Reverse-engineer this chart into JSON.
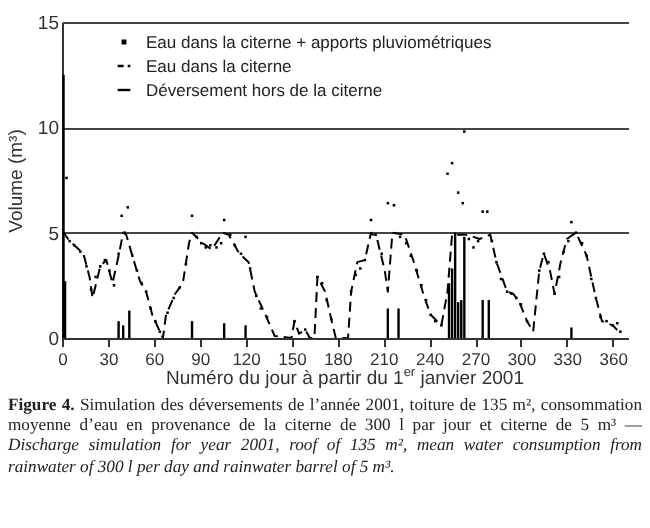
{
  "chart_data": {
    "type": "scatter",
    "xlabel": "Numéro du jour à partir du 1$^{er}$ janvier 2001",
    "ylabel": "Volume (m³)",
    "xlim": [
      0,
      370
    ],
    "xticks": [
      0,
      30,
      60,
      90,
      120,
      150,
      180,
      210,
      240,
      270,
      300,
      330,
      360
    ],
    "ylim": [
      0,
      15
    ],
    "yticks": [
      0,
      5,
      10,
      15
    ],
    "grid": "y",
    "legend": "top left",
    "series": [
      {
        "name": "Eau dans la citerne + apports pluviométriques",
        "marker": "square",
        "color": "#000000",
        "x": [
          3,
          5,
          8,
          12,
          16,
          19,
          22,
          25,
          28,
          31,
          34,
          37,
          39,
          41,
          43,
          46,
          49,
          52,
          55,
          58,
          61,
          64,
          69,
          73,
          77,
          81,
          85,
          88,
          91,
          94,
          97,
          101,
          104,
          106,
          110,
          113,
          117,
          120,
          123,
          127,
          130,
          134,
          152,
          159,
          167,
          170,
          173,
          176,
          189,
          192,
          195,
          198,
          202,
          205,
          209,
          213,
          217,
          221,
          225,
          228,
          232,
          235,
          238,
          241,
          244,
          248,
          252,
          255,
          259,
          262,
          263,
          266,
          269,
          272,
          275,
          278,
          281,
          284,
          287,
          291,
          294,
          297,
          300,
          304,
          312,
          315,
          318,
          322,
          325,
          328,
          331,
          333,
          336,
          340,
          343,
          346,
          349,
          352,
          356,
          360,
          363,
          365
        ],
        "values": [
          7.6,
          4.6,
          4.4,
          4.1,
          3.4,
          2.3,
          2.9,
          3.4,
          3.7,
          3.2,
          2.5,
          4.0,
          5.8,
          5.0,
          6.2,
          3.9,
          3.2,
          2.6,
          2.2,
          1.4,
          0.8,
          0.3,
          1.2,
          1.9,
          2.4,
          3.5,
          5.8,
          4.8,
          4.5,
          4.3,
          4.4,
          4.3,
          4.5,
          5.6,
          4.9,
          4.4,
          4.0,
          4.8,
          3.3,
          2.0,
          1.4,
          1.0,
          0.8,
          0.4,
          2.9,
          2.6,
          1.8,
          0.9,
          2.2,
          3.0,
          3.3,
          3.7,
          5.6,
          4.9,
          4.0,
          6.4,
          6.3,
          4.8,
          4.5,
          3.9,
          3.2,
          2.5,
          1.8,
          1.1,
          0.8,
          0.6,
          7.8,
          8.3,
          6.9,
          6.4,
          9.8,
          4.7,
          4.3,
          4.6,
          6.0,
          6.0,
          4.6,
          3.6,
          2.8,
          2.2,
          2.1,
          1.9,
          1.6,
          0.8,
          3.2,
          4.0,
          3.6,
          2.1,
          2.9,
          4.1,
          4.6,
          5.5,
          5.0,
          4.5,
          3.9,
          2.8,
          1.9,
          1.0,
          0.8,
          0.6,
          0.7,
          0.3
        ]
      },
      {
        "name": "Eau dans la citerne",
        "type": "line",
        "line_style": "dashed",
        "color": "#000000",
        "x": [
          0,
          1,
          5,
          14,
          18,
          20,
          25,
          29,
          33,
          37,
          40,
          42,
          46,
          51,
          55,
          59,
          64,
          66,
          68,
          74,
          79,
          83,
          85,
          92,
          98,
          105,
          109,
          116,
          122,
          126,
          133,
          139,
          150,
          152,
          155,
          159,
          162,
          165,
          167,
          172,
          176,
          179,
          187,
          189,
          193,
          198,
          202,
          206,
          211,
          213,
          216,
          224,
          230,
          237,
          241,
          248,
          252,
          255,
          265,
          273,
          280,
          284,
          291,
          295,
          299,
          304,
          308,
          312,
          315,
          319,
          322,
          326,
          330,
          336,
          343,
          349,
          353,
          360,
          364
        ],
        "values": [
          5.0,
          5.0,
          4.6,
          4.0,
          2.9,
          1.9,
          3.4,
          3.7,
          2.6,
          3.9,
          5.0,
          4.9,
          3.9,
          2.7,
          2.2,
          1.1,
          0.3,
          0,
          1.1,
          2.1,
          2.6,
          4.5,
          5.0,
          4.5,
          4.2,
          5.0,
          4.9,
          4.0,
          3.6,
          2.2,
          1.1,
          0.1,
          0,
          0.8,
          0.2,
          0.4,
          0,
          0,
          2.9,
          2.2,
          0.9,
          0,
          0,
          2.2,
          3.6,
          3.7,
          5.0,
          4.7,
          3.2,
          2.2,
          5.0,
          4.9,
          3.6,
          1.9,
          1.1,
          0.6,
          2.2,
          4.9,
          4.9,
          4.7,
          4.9,
          3.6,
          2.2,
          2.1,
          1.7,
          0.8,
          0.3,
          3.2,
          4.0,
          3.2,
          2.1,
          3.6,
          4.7,
          5.0,
          3.9,
          1.9,
          0.8,
          0.6,
          0.3
        ]
      },
      {
        "name": "Déversement hors de la citerne",
        "type": "bar",
        "color": "#000000",
        "x": [
          1,
          2,
          37,
          40,
          44,
          85,
          106,
          120,
          213,
          220,
          253,
          255,
          257,
          259,
          261,
          263,
          275,
          279,
          333
        ],
        "values": [
          12.5,
          2.7,
          0.8,
          0.6,
          1.3,
          0.8,
          0.7,
          0.6,
          1.4,
          1.4,
          2.6,
          3.3,
          5.0,
          1.7,
          1.8,
          4.8,
          1.8,
          1.8,
          0.5
        ]
      }
    ],
    "annotations": [
      "Figure 4.",
      "Simulation des déversements de l’année 2001, toiture de 135 m², consommation moyenne d’eau en provenance de la citerne de 300 l par jour et citerne de 5 m³ —",
      "Discharge simulation for year 2001, roof of 135 m², mean water consumption from rainwater of 300 l per day and rainwater barrel of 5 m³."
    ]
  }
}
